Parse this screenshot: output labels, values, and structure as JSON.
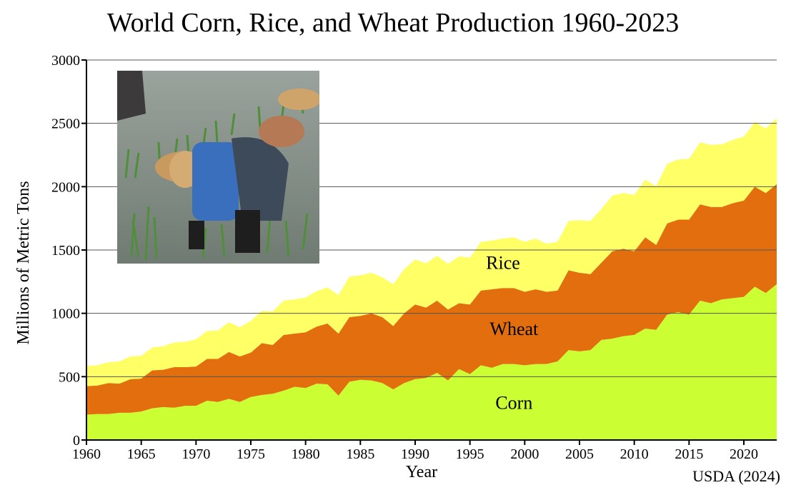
{
  "chart_data": {
    "type": "area",
    "title": "World Corn, Rice, and Wheat Production 1960-2023",
    "xlabel": "Year",
    "ylabel": "Millions of Metric Tons",
    "source": "USDA (2024)",
    "xlim": [
      1960,
      2023
    ],
    "ylim": [
      0,
      3000
    ],
    "x_ticks": [
      1960,
      1965,
      1970,
      1975,
      1980,
      1985,
      1990,
      1995,
      2000,
      2005,
      2010,
      2015,
      2020
    ],
    "y_ticks": [
      0,
      500,
      1000,
      1500,
      2000,
      2500,
      3000
    ],
    "grid": "horizontal",
    "stacked": true,
    "x": [
      1960,
      1961,
      1962,
      1963,
      1964,
      1965,
      1966,
      1967,
      1968,
      1969,
      1970,
      1971,
      1972,
      1973,
      1974,
      1975,
      1976,
      1977,
      1978,
      1979,
      1980,
      1981,
      1982,
      1983,
      1984,
      1985,
      1986,
      1987,
      1988,
      1989,
      1990,
      1991,
      1992,
      1993,
      1994,
      1995,
      1996,
      1997,
      1998,
      1999,
      2000,
      2001,
      2002,
      2003,
      2004,
      2005,
      2006,
      2007,
      2008,
      2009,
      2010,
      2011,
      2012,
      2013,
      2014,
      2015,
      2016,
      2017,
      2018,
      2019,
      2020,
      2021,
      2022,
      2023
    ],
    "series": [
      {
        "name": "Corn",
        "color": "#ccff33",
        "values": [
          200,
          205,
          205,
          215,
          215,
          225,
          250,
          260,
          255,
          270,
          270,
          310,
          300,
          325,
          300,
          340,
          355,
          365,
          390,
          420,
          410,
          445,
          440,
          350,
          460,
          475,
          470,
          450,
          400,
          450,
          480,
          490,
          530,
          470,
          560,
          520,
          590,
          570,
          600,
          600,
          590,
          600,
          600,
          620,
          710,
          700,
          710,
          790,
          800,
          820,
          830,
          880,
          870,
          990,
          1010,
          990,
          1100,
          1080,
          1110,
          1120,
          1130,
          1210,
          1160,
          1230
        ]
      },
      {
        "name": "Wheat",
        "color": "#e36e0e",
        "values": [
          225,
          225,
          245,
          230,
          265,
          260,
          300,
          295,
          320,
          305,
          310,
          330,
          340,
          370,
          360,
          350,
          410,
          385,
          440,
          420,
          440,
          450,
          480,
          490,
          510,
          505,
          530,
          520,
          500,
          550,
          590,
          555,
          570,
          560,
          520,
          550,
          590,
          620,
          600,
          600,
          580,
          590,
          570,
          560,
          630,
          620,
          600,
          610,
          690,
          690,
          660,
          720,
          670,
          720,
          730,
          750,
          760,
          760,
          730,
          750,
          760,
          790,
          790,
          790
        ]
      },
      {
        "name": "Rice",
        "color": "#ffff66",
        "values": [
          160,
          160,
          165,
          175,
          180,
          180,
          180,
          185,
          195,
          200,
          215,
          220,
          225,
          235,
          230,
          250,
          255,
          265,
          270,
          270,
          275,
          280,
          285,
          305,
          320,
          320,
          320,
          315,
          330,
          350,
          355,
          350,
          355,
          360,
          370,
          370,
          385,
          385,
          390,
          400,
          395,
          400,
          380,
          385,
          390,
          415,
          420,
          425,
          440,
          440,
          445,
          455,
          465,
          470,
          475,
          480,
          490,
          490,
          495,
          500,
          505,
          510,
          510,
          520
        ]
      }
    ]
  }
}
